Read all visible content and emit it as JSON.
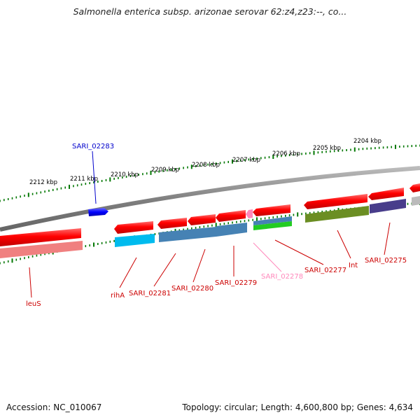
{
  "title": "Salmonella enterica subsp. arizonae serovar 62:z4,z23:--, co...",
  "footer": {
    "accession": "Accession: NC_010067",
    "stats": "Topology: circular; Length: 4,600,800 bp; Genes: 4,634"
  },
  "scale_labels": [
    "2212 kbp",
    "2211 kbp",
    "2210 kbp",
    "2209 kbp",
    "2208 kbp",
    "2207 kbp",
    "2206 kbp",
    "2205 kbp",
    "2204 kbp"
  ],
  "genes": {
    "SARI_02283": {
      "label": "SARI_02283",
      "color": "#0000cc"
    },
    "leuS": {
      "label": "leuS",
      "color": "#cc0000"
    },
    "rihA": {
      "label": "rihA",
      "color": "#cc0000"
    },
    "SARI_02281": {
      "label": "SARI_02281",
      "color": "#cc0000"
    },
    "SARI_02280": {
      "label": "SARI_02280",
      "color": "#cc0000"
    },
    "SARI_02279": {
      "label": "SARI_02279",
      "color": "#cc0000"
    },
    "SARI_02278": {
      "label": "SARI_02278",
      "color": "#ff88bb"
    },
    "SARI_02277": {
      "label": "SARI_02277",
      "color": "#cc0000"
    },
    "Int": {
      "label": "Int",
      "color": "#cc0000"
    },
    "SARI_02275": {
      "label": "SARI_02275",
      "color": "#cc0000"
    }
  },
  "colors": {
    "backbone": "#888888",
    "cds": "#ff0000",
    "tick": "#007700",
    "cog_cyan": "#00bbee",
    "cog_steel": "#4682b4",
    "cog_olive": "#6b8e23",
    "cog_slate": "#483d8b",
    "cog_green": "#22cc22",
    "cog_salmon": "#f08080"
  }
}
